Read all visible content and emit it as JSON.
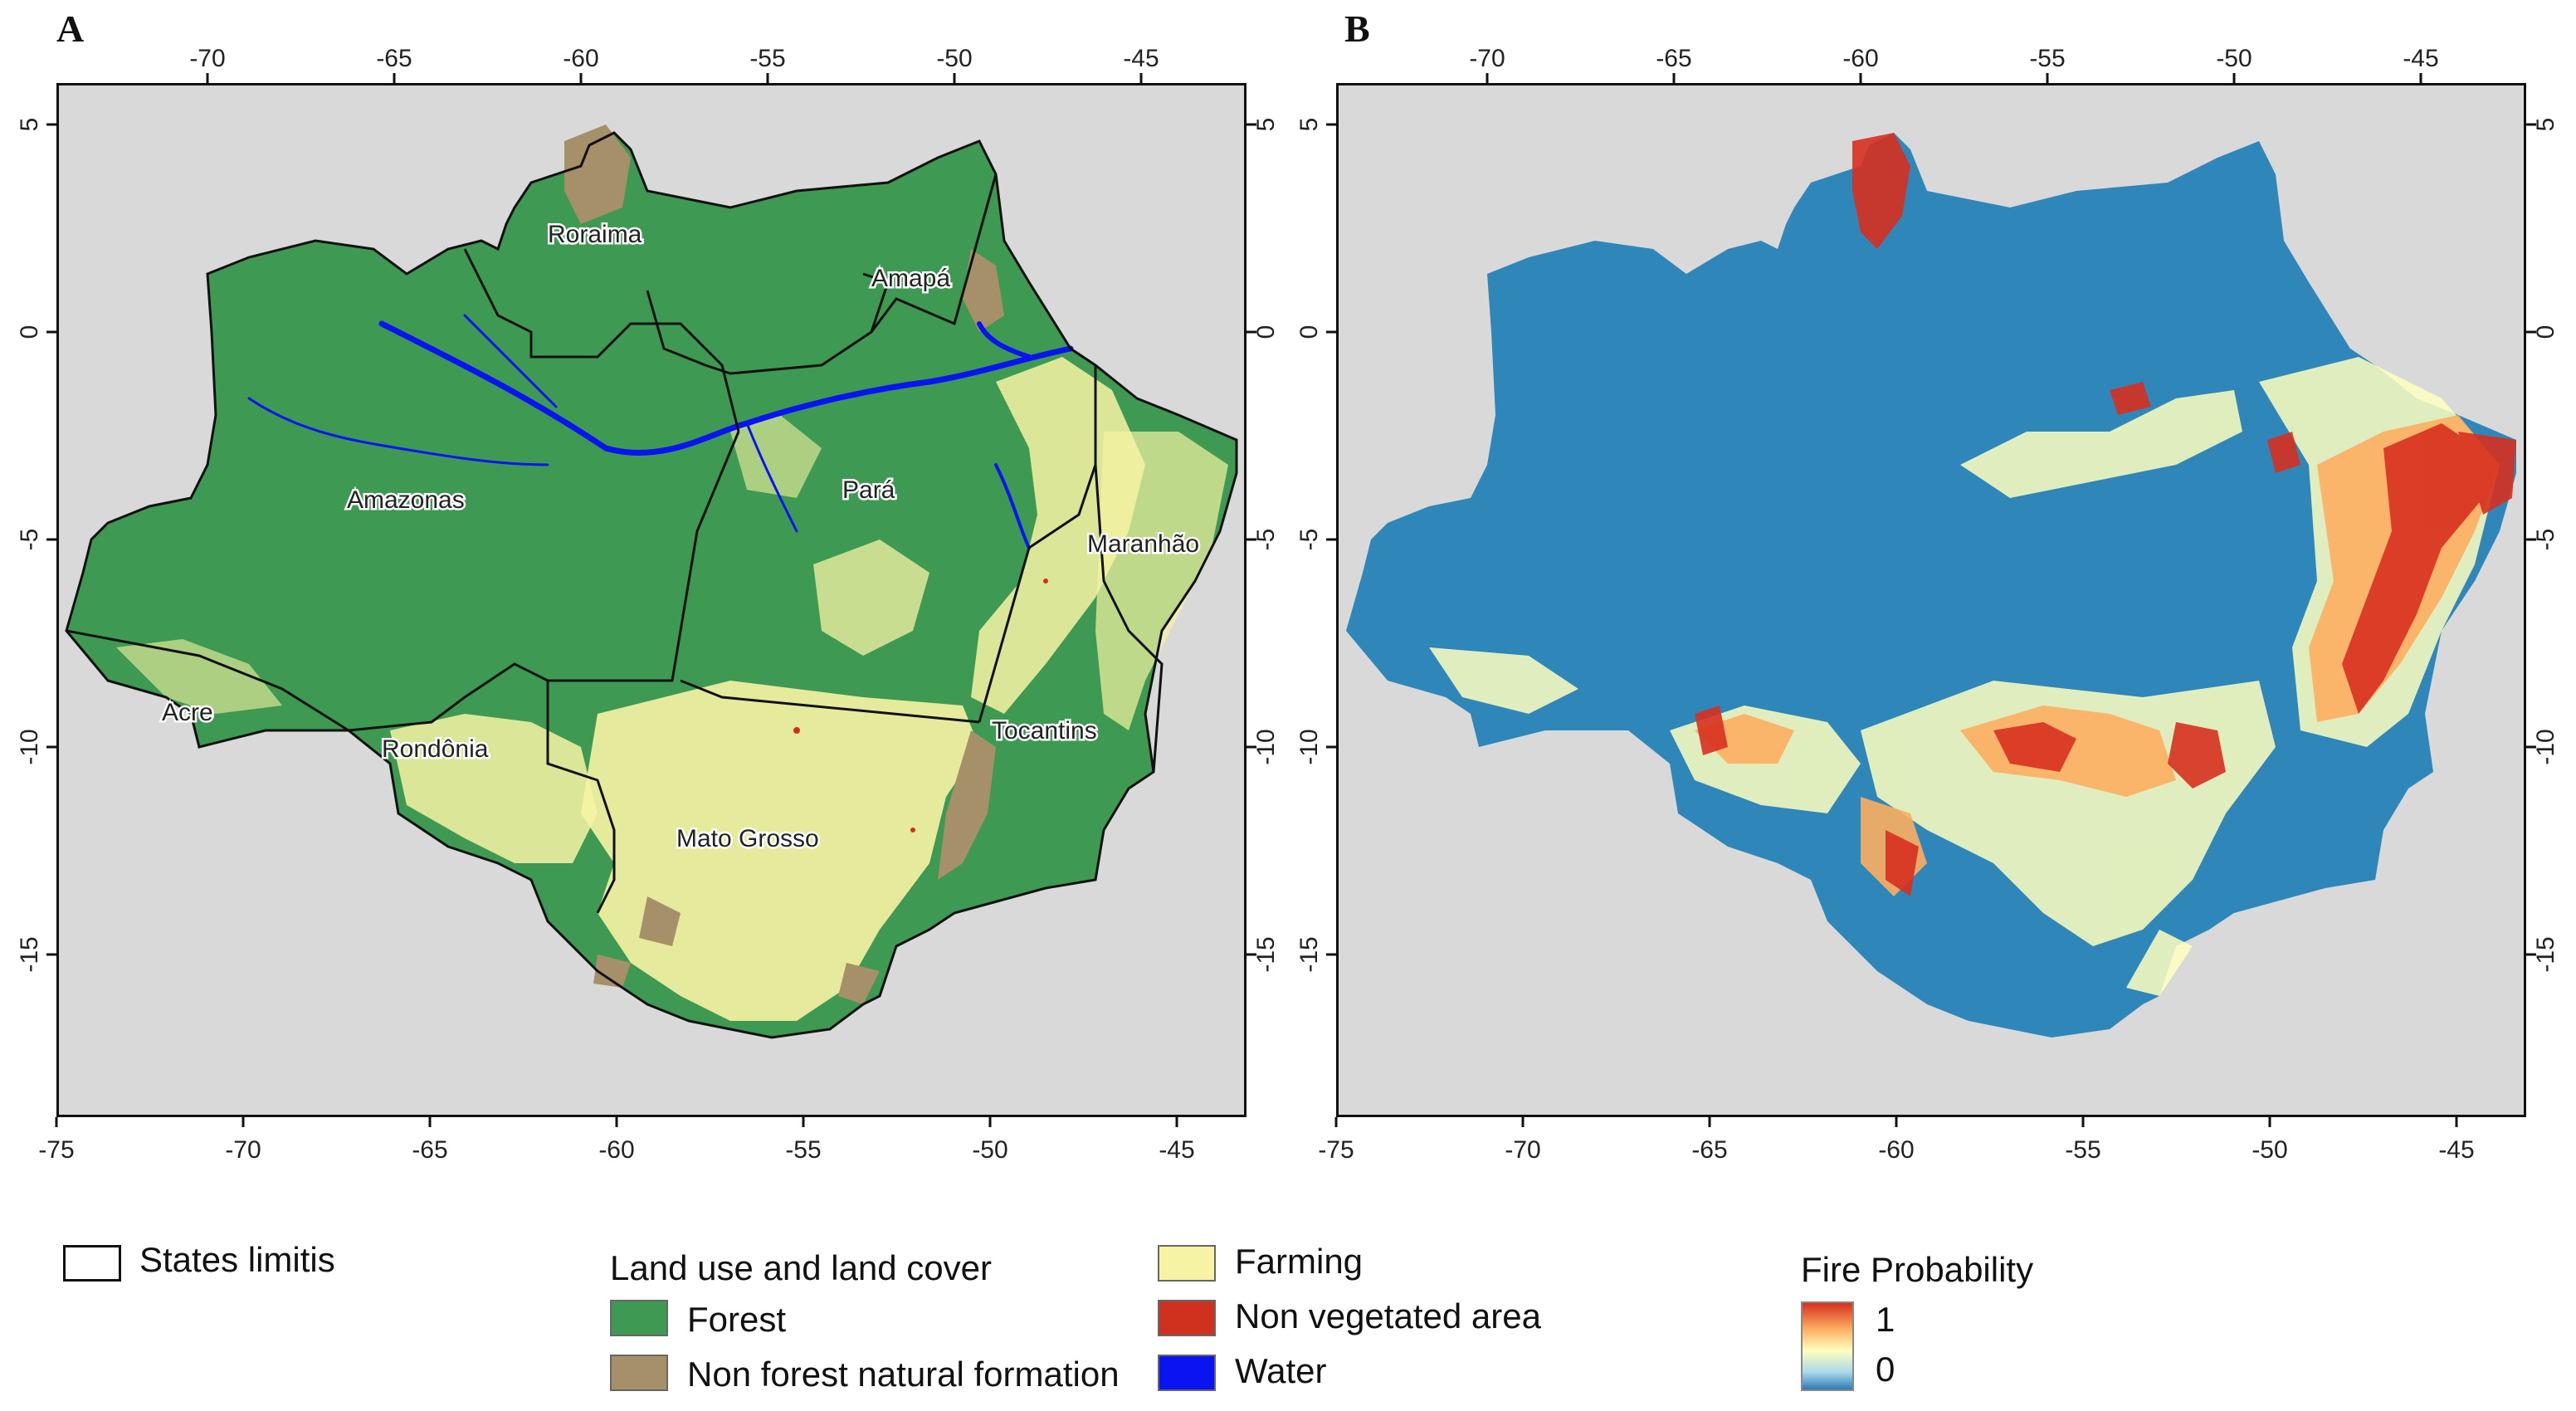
{
  "panels": {
    "a": {
      "letter": "A"
    },
    "b": {
      "letter": "B"
    }
  },
  "axes": {
    "lon_ticks": [
      "-75",
      "-70",
      "-65",
      "-60",
      "-55",
      "-50",
      "-45"
    ],
    "lat_ticks": [
      "5",
      "0",
      "-5",
      "-10",
      "-15"
    ]
  },
  "states": [
    "Roraima",
    "Amapá",
    "Amazonas",
    "Pará",
    "Maranhão",
    "Acre",
    "Rondônia",
    "Tocantins",
    "Mato Grosso"
  ],
  "legend": {
    "states_label": "States limitis",
    "lulc_title": "Land use and land cover",
    "classes": {
      "forest": "Forest",
      "non_forest": "Non forest natural formation",
      "farming": "Farming",
      "non_veg": "Non vegetated area",
      "water": "Water"
    },
    "fire_title": "Fire Probability",
    "fire_max": "1",
    "fire_min": "0"
  },
  "colors": {
    "background": "#d9d9d9",
    "forest": "#3e9a52",
    "non_forest": "#a6906a",
    "farming": "#f7f3a4",
    "non_veg": "#d0301e",
    "water": "#0a14f0",
    "fire_high": "#d7301f",
    "fire_mid": "#ffffbf",
    "fire_low": "#2c7bb6"
  }
}
